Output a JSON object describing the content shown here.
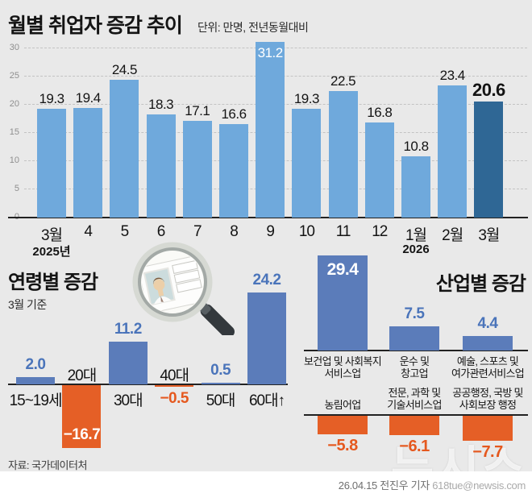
{
  "header": {
    "title": "월별 취업자 증감 추이",
    "unit": "단위: 만명, 전년동월대비"
  },
  "colors": {
    "background": "#e9e9e9",
    "bar_light_blue": "#6fa9dc",
    "bar_dark_blue": "#2f6795",
    "bar_slate_blue": "#5b7cba",
    "bar_orange": "#e55f26",
    "positive_value_text": "#4a74ba",
    "negative_value_text": "#e5581e",
    "grid": "#c3c3c3",
    "axis": "#222222"
  },
  "chart_data": [
    {
      "id": "monthly",
      "type": "bar",
      "title": "월별 취업자 증감 추이",
      "unit": "단위: 만명, 전년동월대비",
      "categories": [
        "3월",
        "4",
        "5",
        "6",
        "7",
        "8",
        "9",
        "10",
        "11",
        "12",
        "1월",
        "2월",
        "3월"
      ],
      "year_labels": [
        {
          "index": 0,
          "text": "2025년"
        },
        {
          "index": 10,
          "text": "2026"
        }
      ],
      "values": [
        19.3,
        19.4,
        24.5,
        18.3,
        17.1,
        16.6,
        31.2,
        19.3,
        22.5,
        16.8,
        10.8,
        23.4,
        20.6
      ],
      "value_labels": [
        "19.3",
        "19.4",
        "24.5",
        "18.3",
        "17.1",
        "16.6",
        "31.2",
        "19.3",
        "22.5",
        "16.8",
        "10.8",
        "23.4",
        "20.6"
      ],
      "highlight_index": 12,
      "ylim": [
        0,
        30
      ],
      "yticks": [
        0,
        5,
        10,
        15,
        20,
        25,
        30
      ],
      "grid": "dashed",
      "legend": "none"
    },
    {
      "id": "age",
      "type": "bar",
      "title": "연령별 증감",
      "subtitle": "3월 기준",
      "categories": [
        "15~19세",
        "20대",
        "30대",
        "40대",
        "50대",
        "60대↑"
      ],
      "values": [
        2.0,
        -16.7,
        11.2,
        -0.5,
        0.5,
        24.2
      ],
      "value_labels": [
        "2.0",
        "−16.7",
        "11.2",
        "−0.5",
        "0.5",
        "24.2"
      ]
    },
    {
      "id": "industry_positive",
      "type": "bar",
      "title": "산업별 증감",
      "categories": [
        "보건업 및 사회복지 서비스업",
        "운수 및 창고업",
        "예술, 스포츠 및 여가관련서비스업"
      ],
      "category_lines": [
        [
          "보건업 및 사회복지",
          "서비스업"
        ],
        [
          "운수 및",
          "창고업"
        ],
        [
          "예술, 스포츠 및",
          "여가관련서비스업"
        ]
      ],
      "values": [
        29.4,
        7.5,
        4.4
      ],
      "value_labels": [
        "29.4",
        "7.5",
        "4.4"
      ]
    },
    {
      "id": "industry_negative",
      "type": "bar",
      "categories": [
        "농림어업",
        "전문, 과학 및 기술서비스업",
        "공공행정, 국방 및 사회보장 행정"
      ],
      "category_lines": [
        [
          "농림어업"
        ],
        [
          "전문, 과학 및",
          "기술서비스업"
        ],
        [
          "공공행정, 국방 및",
          "사회보장 행정"
        ]
      ],
      "values": [
        -5.8,
        -6.1,
        -7.7
      ],
      "value_labels": [
        "−5.8",
        "−6.1",
        "−7.7"
      ]
    }
  ],
  "illustration": {
    "name": "magnifier-resume-illustration"
  },
  "footer": {
    "source": "자료: 국가데이터처",
    "credit_prefix": "26.04.15 전진우 기자 ",
    "credit_email": "618tue@newsis.com",
    "watermark": "뉴시스"
  }
}
